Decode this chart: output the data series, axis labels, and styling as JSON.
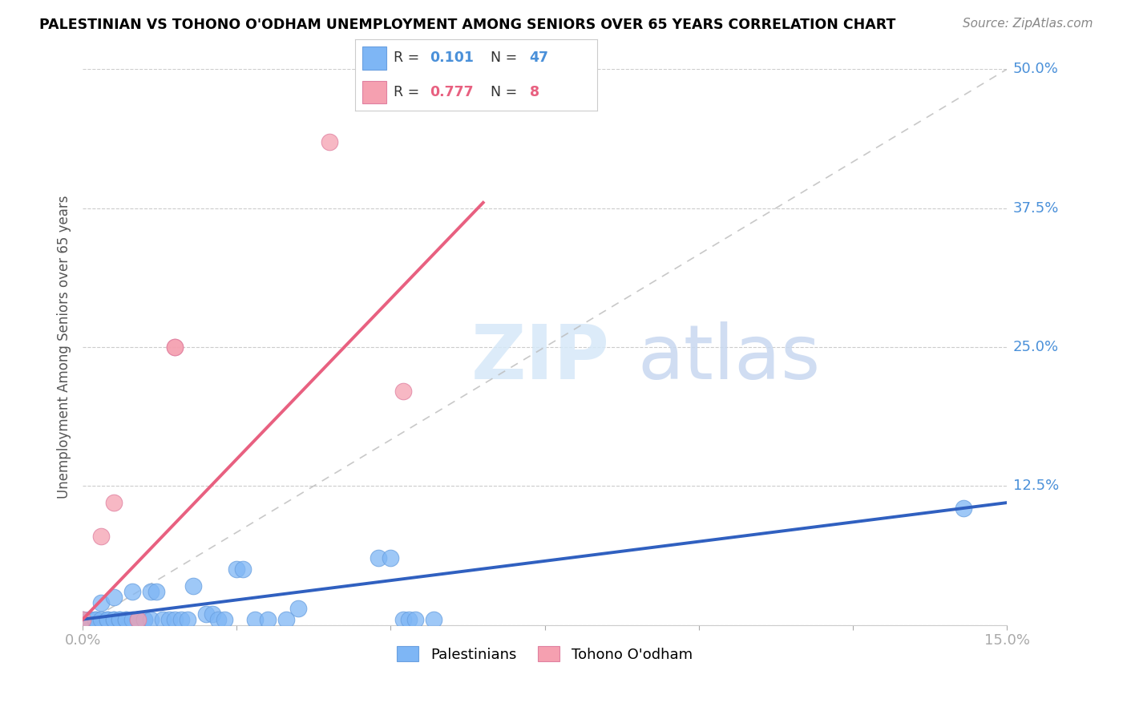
{
  "title": "PALESTINIAN VS TOHONO O'ODHAM UNEMPLOYMENT AMONG SENIORS OVER 65 YEARS CORRELATION CHART",
  "source": "Source: ZipAtlas.com",
  "ylabel": "Unemployment Among Seniors over 65 years",
  "xlim": [
    0.0,
    0.15
  ],
  "ylim": [
    0.0,
    0.5
  ],
  "xticks": [
    0.0,
    0.025,
    0.05,
    0.075,
    0.1,
    0.125,
    0.15
  ],
  "xtick_labels": [
    "0.0%",
    "",
    "",
    "",
    "",
    "",
    "15.0%"
  ],
  "ytick_labels_right": [
    "",
    "12.5%",
    "25.0%",
    "37.5%",
    "50.0%"
  ],
  "yticks": [
    0.0,
    0.125,
    0.25,
    0.375,
    0.5
  ],
  "palestinian_color": "#7EB6F5",
  "tohono_color": "#F5A0B0",
  "blue_line_color": "#3060C0",
  "pink_line_color": "#E86080",
  "palestinian_x": [
    0.0,
    0.001,
    0.002,
    0.002,
    0.003,
    0.003,
    0.004,
    0.004,
    0.005,
    0.005,
    0.005,
    0.006,
    0.006,
    0.007,
    0.007,
    0.008,
    0.008,
    0.009,
    0.009,
    0.01,
    0.01,
    0.011,
    0.011,
    0.012,
    0.013,
    0.014,
    0.015,
    0.016,
    0.017,
    0.018,
    0.02,
    0.021,
    0.022,
    0.023,
    0.025,
    0.026,
    0.028,
    0.03,
    0.033,
    0.035,
    0.048,
    0.05,
    0.052,
    0.053,
    0.054,
    0.057,
    0.143
  ],
  "palestinian_y": [
    0.005,
    0.005,
    0.005,
    0.005,
    0.005,
    0.02,
    0.005,
    0.005,
    0.005,
    0.025,
    0.005,
    0.005,
    0.005,
    0.005,
    0.005,
    0.005,
    0.03,
    0.005,
    0.005,
    0.005,
    0.005,
    0.005,
    0.03,
    0.03,
    0.005,
    0.005,
    0.005,
    0.005,
    0.005,
    0.035,
    0.01,
    0.01,
    0.005,
    0.005,
    0.05,
    0.05,
    0.005,
    0.005,
    0.005,
    0.015,
    0.06,
    0.06,
    0.005,
    0.005,
    0.005,
    0.005,
    0.105
  ],
  "tohono_x": [
    0.0,
    0.003,
    0.005,
    0.009,
    0.015,
    0.015,
    0.04,
    0.052
  ],
  "tohono_y": [
    0.005,
    0.08,
    0.11,
    0.005,
    0.25,
    0.25,
    0.435,
    0.21
  ],
  "blue_line_x": [
    0.0,
    0.15
  ],
  "blue_line_y": [
    0.005,
    0.11
  ],
  "pink_line_x": [
    0.0,
    0.065
  ],
  "pink_line_y": [
    0.005,
    0.38
  ]
}
